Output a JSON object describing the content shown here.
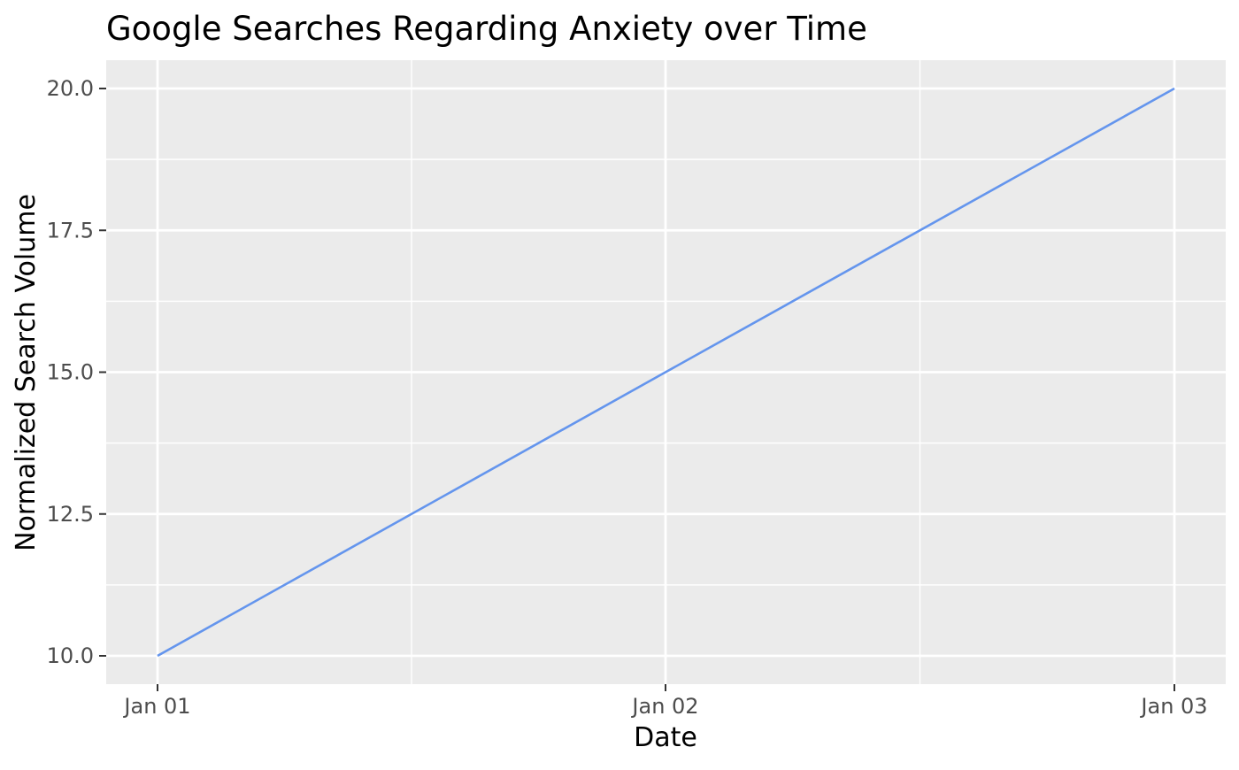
{
  "chart_data": {
    "type": "line",
    "title": "Google Searches Regarding Anxiety over Time",
    "xlabel": "Date",
    "ylabel": "Normalized Search Volume",
    "x": [
      "Jan 01",
      "Jan 02",
      "Jan 03"
    ],
    "series": [
      {
        "values": [
          10,
          15,
          20
        ],
        "color": "#6495ed"
      }
    ],
    "xticks": [
      "Jan 01",
      "Jan 02",
      "Jan 03"
    ],
    "yticks": [
      10,
      12.5,
      15,
      17.5,
      20
    ],
    "ytick_labels": [
      "10.0",
      "12.5",
      "15.0",
      "17.5",
      "20.0"
    ],
    "ylim": [
      10,
      20
    ],
    "grid": true,
    "legend": "none",
    "panel_color": "#ebebeb",
    "grid_color": "#ffffff",
    "text_color": "#000000",
    "tick_label_color": "#4d4d4d",
    "tick_color": "#333333"
  }
}
